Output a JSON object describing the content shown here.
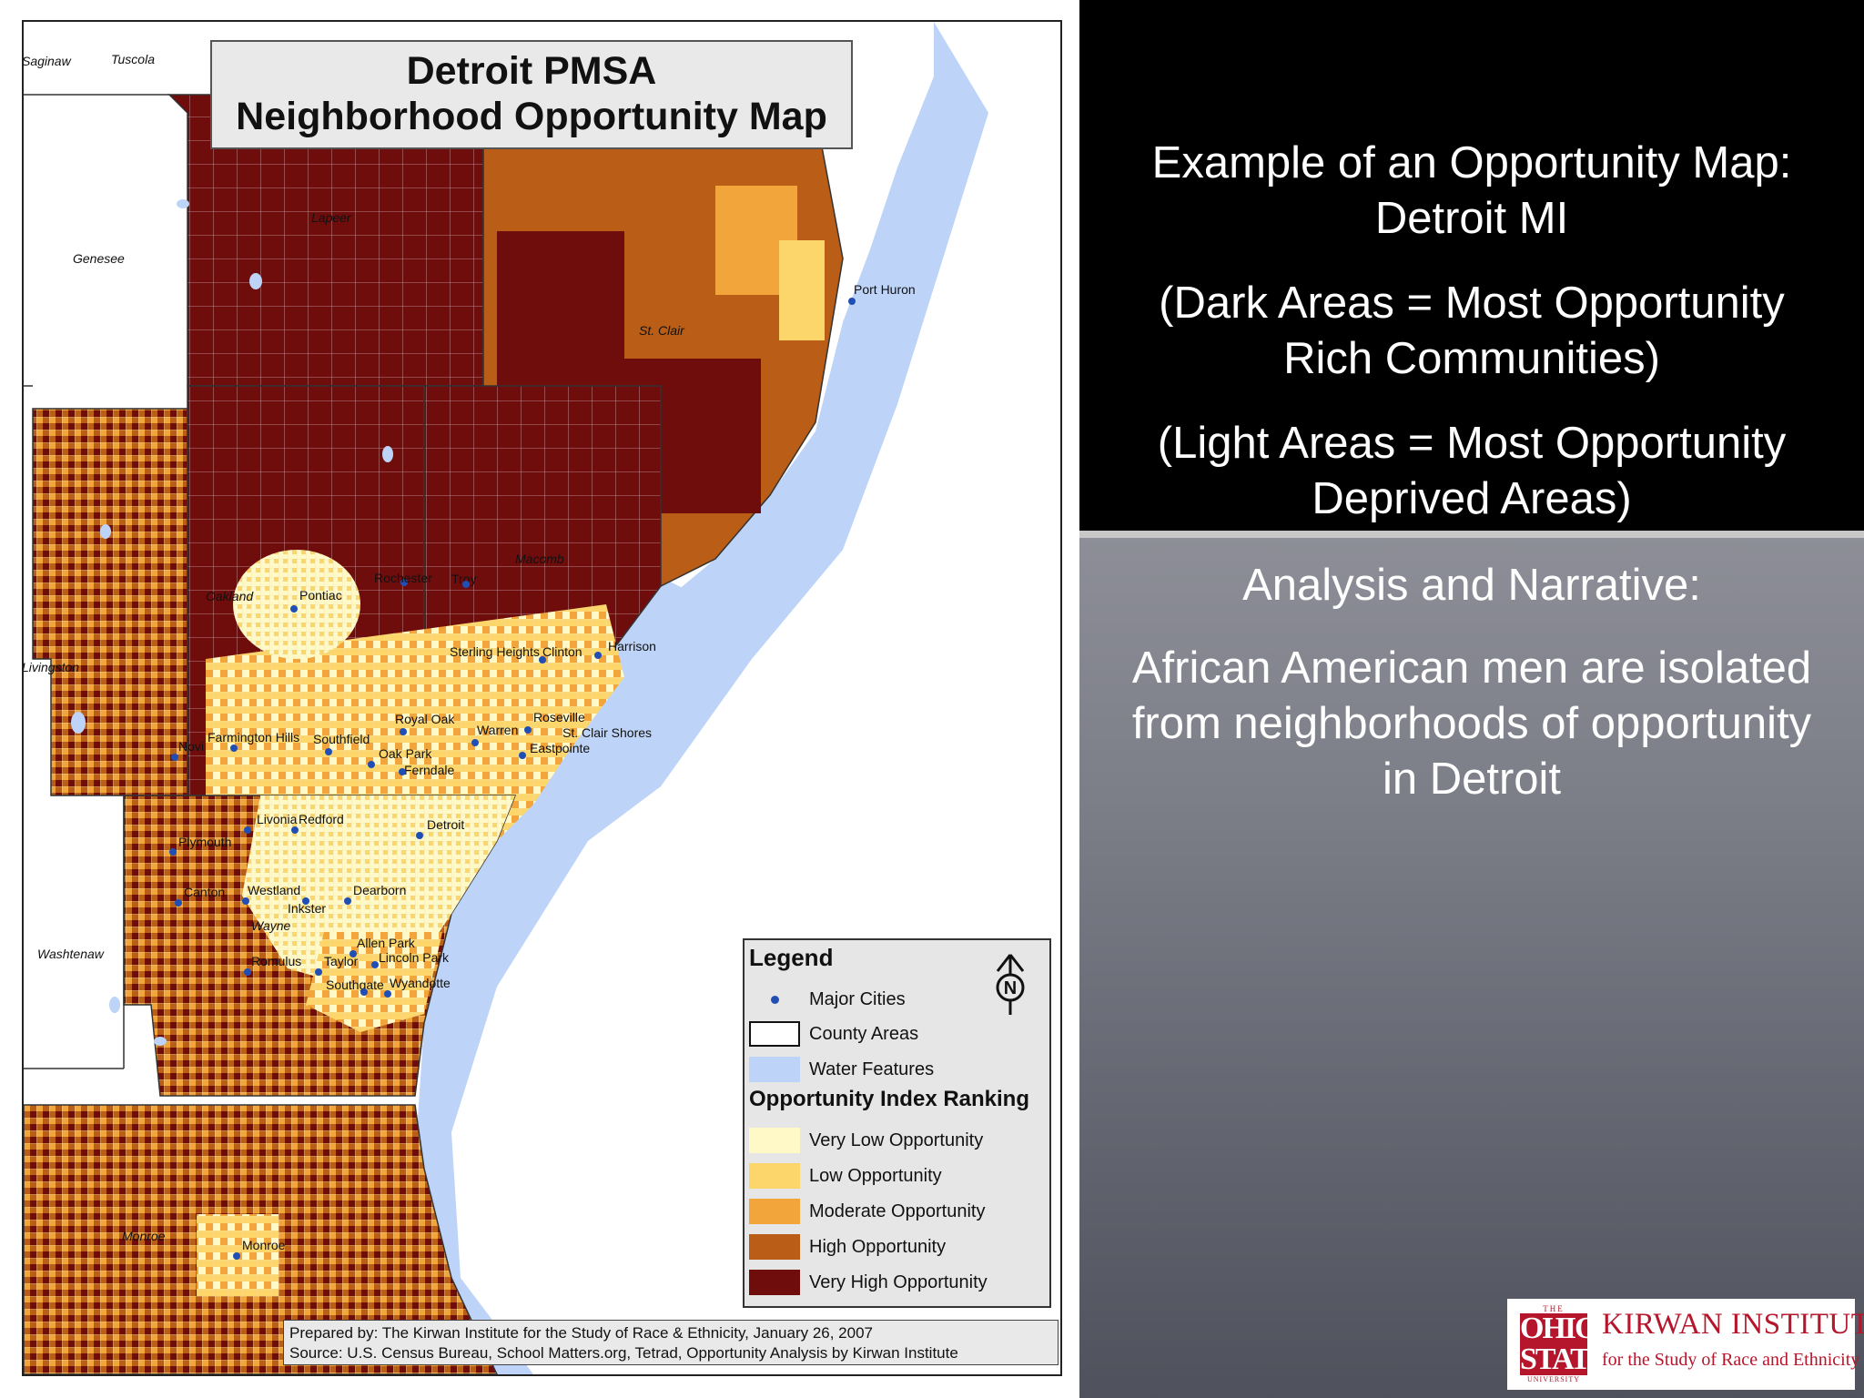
{
  "colors": {
    "very_low": "#fff9c8",
    "low": "#fcd66a",
    "moderate": "#f2a53b",
    "high": "#b95d17",
    "very_high": "#6f0d0d",
    "water": "#bdd3f7",
    "city": "#1f4fb5"
  },
  "map": {
    "title_line1": "Detroit PMSA",
    "title_line2": "Neighborhood Opportunity Map",
    "places": {
      "saginaw": "Saginaw",
      "tuscola": "Tuscola",
      "genesee": "Genesee",
      "lapeer": "Lapeer",
      "st_clair": "St. Clair",
      "port_huron": "Port Huron",
      "oakland": "Oakland",
      "macomb": "Macomb",
      "livingston": "Livingston",
      "washtenaw": "Washtenaw",
      "wayne": "Wayne",
      "monroe_county": "Monroe",
      "pontiac": "Pontiac",
      "rochester": "Rochester",
      "troy": "Troy",
      "sterling_heights": "Sterling Heights",
      "clinton": "Clinton",
      "harrison": "Harrison",
      "royal_oak": "Royal Oak",
      "warren": "Warren",
      "roseville": "Roseville",
      "st_clair_shores": "St. Clair Shores",
      "eastpointe": "Eastpointe",
      "farmington_hills": "Farmington Hills",
      "southfield": "Southfield",
      "oak_park": "Oak Park",
      "ferndale": "Ferndale",
      "novi": "Novi",
      "livonia": "Livonia",
      "redford": "Redford",
      "detroit": "Detroit",
      "plymouth": "Plymouth",
      "canton": "Canton",
      "westland": "Westland",
      "inkster": "Inkster",
      "dearborn": "Dearborn",
      "allen_park": "Allen Park",
      "lincoln_park": "Lincoln Park",
      "romulus": "Romulus",
      "taylor": "Taylor",
      "southgate": "Southgate",
      "wyandotte": "Wyandotte",
      "monroe_city": "Monroe"
    },
    "legend": {
      "title": "Legend",
      "major_cities": "Major Cities",
      "county_areas": "County Areas",
      "water_features": "Water Features",
      "ranking_title": "Opportunity Index Ranking",
      "very_low": "Very Low Opportunity",
      "low": "Low Opportunity",
      "moderate": "Moderate Opportunity",
      "high": "High Opportunity",
      "very_high": "Very High Opportunity",
      "north": "N"
    },
    "credit_line1": "Prepared by: The Kirwan Institute for the Study of Race & Ethnicity, January 26, 2007",
    "credit_line2": "Source: U.S. Census Bureau, School Matters.org, Tetrad, Opportunity Analysis by Kirwan Institute"
  },
  "text_panel": {
    "line1": "Example of an Opportunity Map:",
    "line2": "Detroit MI",
    "line3": "(Dark Areas = Most Opportunity",
    "line4": "Rich Communities)",
    "line5": "(Light Areas = Most Opportunity",
    "line6": "Deprived Areas)"
  },
  "narrative": {
    "heading": "Analysis and Narrative:",
    "line1": "African American men are isolated",
    "line2": "from neighborhoods of opportunity",
    "line3": "in Detroit"
  },
  "logo": {
    "the": "THE",
    "ohio": "OHIO",
    "state": "STATE",
    "university": "UNIVERSITY",
    "name": "KIRWAN INSTITUTE",
    "tagline": "for the Study of Race and Ethnicity"
  }
}
